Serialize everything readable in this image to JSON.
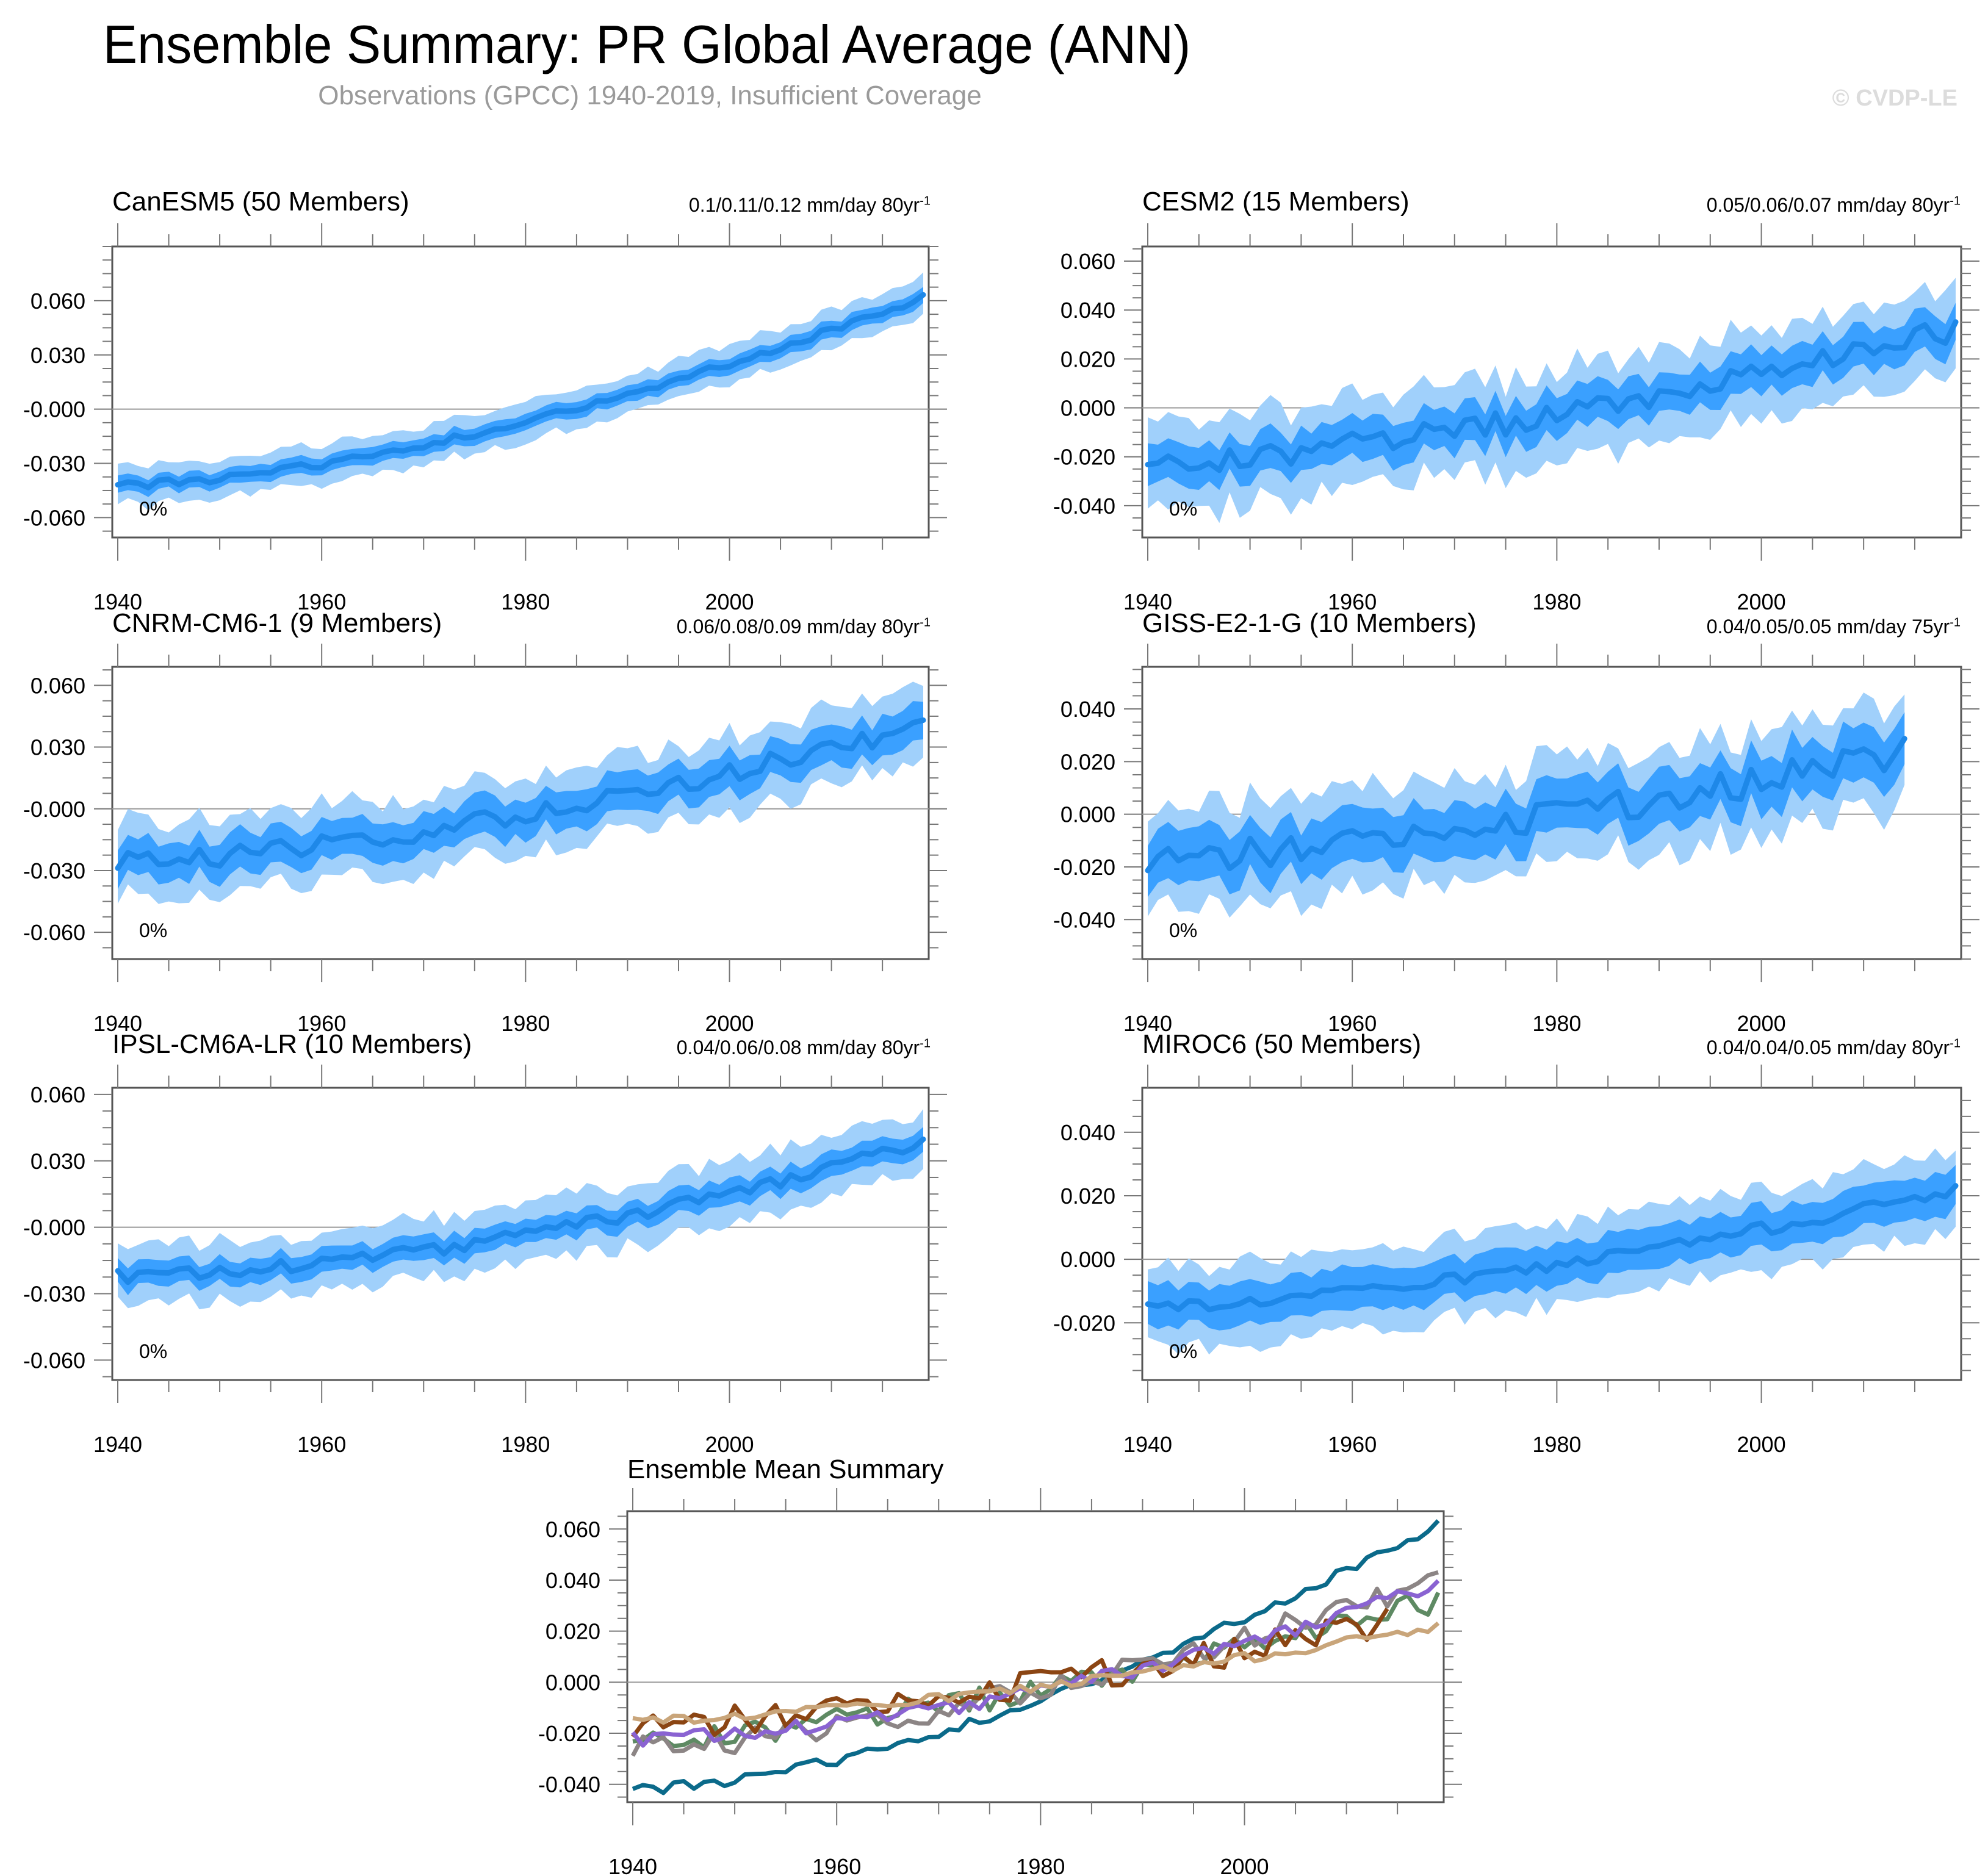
{
  "header": {
    "title": "Ensemble Summary: PR Global Average (ANN)",
    "subtitle": "Observations (GPCC) 1940-2019, Insufficient Coverage",
    "credit": "© CVDP-LE"
  },
  "colors": {
    "band_outer": "#a0d0fb",
    "band_inner": "#3aa0ff",
    "mean_line": "#1e88e8",
    "zero_line": "#999999",
    "frame": "#555555"
  },
  "chart_data": [
    {
      "type": "area",
      "title": "CanESM5 (50 Members)",
      "title_color": "#0b6a8a",
      "trend_label": "0.1/0.11/0.12 mm/day 80yr",
      "trend_sup": "-1",
      "annotation": "0%",
      "x_range": [
        1940,
        2019
      ],
      "xticks": [
        1940,
        1960,
        1980,
        2000
      ],
      "ylim": [
        -0.071,
        0.09
      ],
      "yticks": [
        -0.06,
        -0.03,
        0.0,
        0.03,
        0.06
      ],
      "ytick_labels": [
        "-0.060",
        "-0.030",
        "-0.000",
        "0.030",
        "0.060"
      ],
      "mean_start": -0.042,
      "mean_end": 0.062,
      "curve": 1.6,
      "noise": 0.002,
      "inner_spread": 0.005,
      "outer_spread": 0.011,
      "seed": 1
    },
    {
      "type": "area",
      "title": "CESM2 (15 Members)",
      "title_color": "#5e8a63",
      "trend_label": "0.05/0.06/0.07 mm/day 80yr",
      "trend_sup": "-1",
      "annotation": "0%",
      "x_range": [
        1940,
        2019
      ],
      "xticks": [
        1940,
        1960,
        1980,
        2000
      ],
      "ylim": [
        -0.053,
        0.066
      ],
      "yticks": [
        -0.04,
        -0.02,
        0.0,
        0.02,
        0.04,
        0.06
      ],
      "ytick_labels": [
        "-0.040",
        "-0.020",
        "0.000",
        "0.020",
        "0.040",
        "0.060"
      ],
      "mean_start": -0.022,
      "mean_end": 0.032,
      "curve": 1.5,
      "noise": 0.005,
      "inner_spread": 0.009,
      "outer_spread": 0.019,
      "seed": 2
    },
    {
      "type": "area",
      "title": "CNRM-CM6-1 (9 Members)",
      "title_color": "#8c8585",
      "trend_label": "0.06/0.08/0.09 mm/day 80yr",
      "trend_sup": "-1",
      "annotation": "0%",
      "x_range": [
        1940,
        2019
      ],
      "xticks": [
        1940,
        1960,
        1980,
        2000
      ],
      "ylim": [
        -0.073,
        0.069
      ],
      "yticks": [
        -0.06,
        -0.03,
        0.0,
        0.03,
        0.06
      ],
      "ytick_labels": [
        "-0.060",
        "-0.030",
        "-0.000",
        "0.030",
        "0.060"
      ],
      "mean_start": -0.026,
      "mean_end": 0.04,
      "curve": 1.5,
      "noise": 0.005,
      "inner_spread": 0.01,
      "outer_spread": 0.019,
      "seed": 3
    },
    {
      "type": "area",
      "title": "GISS-E2-1-G (10 Members)",
      "title_color": "#8b4513",
      "trend_label": "0.04/0.05/0.05 mm/day 75yr",
      "trend_sup": "-1",
      "annotation": "0%",
      "x_range": [
        1940,
        2014
      ],
      "xticks": [
        1940,
        1960,
        1980,
        2000
      ],
      "ylim": [
        -0.055,
        0.056
      ],
      "yticks": [
        -0.04,
        -0.02,
        0.0,
        0.02,
        0.04
      ],
      "ytick_labels": [
        "-0.040",
        "-0.020",
        "0.000",
        "0.020",
        "0.040"
      ],
      "mean_start": -0.016,
      "mean_end": 0.024,
      "curve": 1.6,
      "noise": 0.006,
      "inner_spread": 0.011,
      "outer_spread": 0.02,
      "seed": 4
    },
    {
      "type": "area",
      "title": "IPSL-CM6A-LR (10 Members)",
      "title_color": "#8a63d2",
      "trend_label": "0.04/0.06/0.08 mm/day 80yr",
      "trend_sup": "-1",
      "annotation": "0%",
      "x_range": [
        1940,
        2019
      ],
      "xticks": [
        1940,
        1960,
        1980,
        2000
      ],
      "ylim": [
        -0.069,
        0.063
      ],
      "yticks": [
        -0.06,
        -0.03,
        0.0,
        0.03,
        0.06
      ],
      "ytick_labels": [
        "-0.060",
        "-0.030",
        "-0.000",
        "0.030",
        "0.060"
      ],
      "mean_start": -0.022,
      "mean_end": 0.038,
      "curve": 1.7,
      "noise": 0.003,
      "inner_spread": 0.006,
      "outer_spread": 0.014,
      "seed": 5
    },
    {
      "type": "area",
      "title": "MIROC6 (50 Members)",
      "title_color": "#c9a57a",
      "trend_label": "0.04/0.04/0.05 mm/day 80yr",
      "trend_sup": "-1",
      "annotation": "0%",
      "x_range": [
        1940,
        2019
      ],
      "xticks": [
        1940,
        1960,
        1980,
        2000
      ],
      "ylim": [
        -0.038,
        0.054
      ],
      "yticks": [
        -0.02,
        0.0,
        0.02,
        0.04
      ],
      "ytick_labels": [
        "-0.020",
        "0.000",
        "0.020",
        "0.040"
      ],
      "mean_start": -0.015,
      "mean_end": 0.022,
      "curve": 1.5,
      "noise": 0.002,
      "inner_spread": 0.007,
      "outer_spread": 0.013,
      "seed": 6
    },
    {
      "type": "line",
      "title": "Ensemble Mean Summary",
      "x_range": [
        1940,
        2019
      ],
      "xticks": [
        1940,
        1960,
        1980,
        2000
      ],
      "ylim": [
        -0.047,
        0.067
      ],
      "yticks": [
        -0.04,
        -0.02,
        0.0,
        0.02,
        0.04,
        0.06
      ],
      "ytick_labels": [
        "-0.040",
        "-0.020",
        "0.000",
        "0.020",
        "0.040",
        "0.060"
      ],
      "series": [
        {
          "name": "CanESM5",
          "color": "#0b6a8a",
          "ref": 0
        },
        {
          "name": "CESM2",
          "color": "#5e8a63",
          "ref": 1
        },
        {
          "name": "CNRM-CM6-1",
          "color": "#8c8585",
          "ref": 2
        },
        {
          "name": "GISS-E2-1-G",
          "color": "#8b4513",
          "ref": 3
        },
        {
          "name": "IPSL-CM6A-LR",
          "color": "#8a63d2",
          "ref": 4
        },
        {
          "name": "MIROC6",
          "color": "#c9a57a",
          "ref": 5
        }
      ]
    }
  ]
}
